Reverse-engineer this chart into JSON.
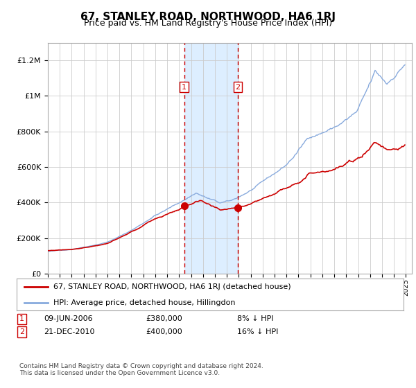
{
  "title": "67, STANLEY ROAD, NORTHWOOD, HA6 1RJ",
  "subtitle": "Price paid vs. HM Land Registry's House Price Index (HPI)",
  "title_fontsize": 11,
  "subtitle_fontsize": 9,
  "background_color": "#ffffff",
  "plot_bg_color": "#ffffff",
  "grid_color": "#cccccc",
  "red_line_color": "#cc0000",
  "blue_line_color": "#88aadd",
  "shade_color": "#ddeeff",
  "dashed_color": "#cc0000",
  "event1_price": 380000,
  "event2_price": 400000,
  "event1_label": "09-JUN-2006",
  "event2_label": "21-DEC-2010",
  "event1_pct": "8% ↓ HPI",
  "event2_pct": "16% ↓ HPI",
  "legend_line1": "67, STANLEY ROAD, NORTHWOOD, HA6 1RJ (detached house)",
  "legend_line2": "HPI: Average price, detached house, Hillingdon",
  "footer": "Contains HM Land Registry data © Crown copyright and database right 2024.\nThis data is licensed under the Open Government Licence v3.0.",
  "ylim": [
    0,
    1300000
  ],
  "yticks": [
    0,
    200000,
    400000,
    600000,
    800000,
    1000000,
    1200000
  ],
  "ytick_labels": [
    "£0",
    "£200K",
    "£400K",
    "£600K",
    "£800K",
    "£1M",
    "£1.2M"
  ]
}
